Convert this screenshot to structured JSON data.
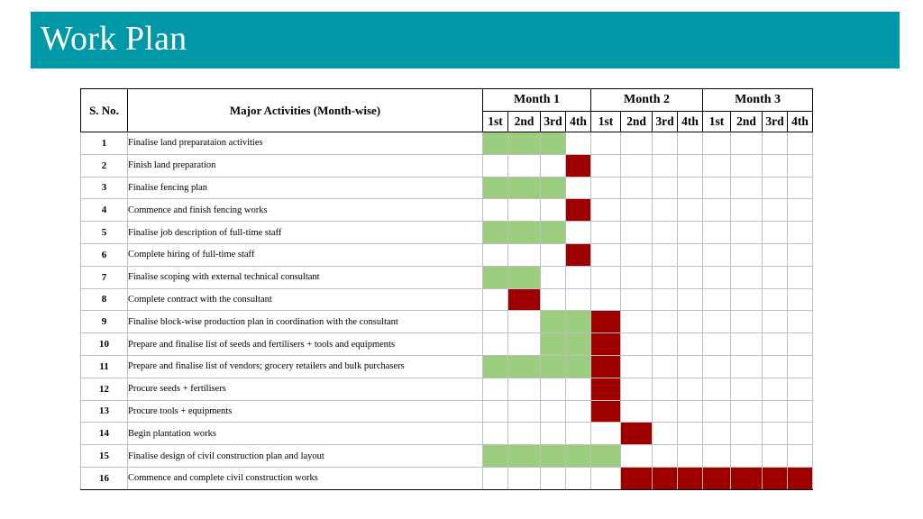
{
  "header": {
    "title": "Work Plan",
    "color": "#0097a7"
  },
  "table": {
    "sno_header": "S. No.",
    "activity_header": "Major Activities (Month-wise)",
    "months": [
      "Month 1",
      "Month 2",
      "Month 3"
    ],
    "weeks": [
      "1st",
      "2nd",
      "3rd",
      "4th"
    ],
    "colors": {
      "planning": "#9bcd7e",
      "execution": "#9e0000"
    },
    "rows": [
      {
        "no": "1",
        "activity": "Finalise land preparataion activities",
        "cells": "GGG........."
      },
      {
        "no": "2",
        "activity": "Finish land preparation",
        "cells": "...R........"
      },
      {
        "no": "3",
        "activity": "Finalise fencing plan",
        "cells": "GGG........."
      },
      {
        "no": "4",
        "activity": "Commence and finish fencing works",
        "cells": "...R........"
      },
      {
        "no": "5",
        "activity": "Finalise job description of full-time staff",
        "cells": "GGG........."
      },
      {
        "no": "6",
        "activity": "Complete hiring of full-time staff",
        "cells": "...R........"
      },
      {
        "no": "7",
        "activity": "Finalise scoping with external technical consultant",
        "cells": "GG.........."
      },
      {
        "no": "8",
        "activity": "Complete contract with the consultant",
        "cells": ".R.........."
      },
      {
        "no": "9",
        "activity": "Finalise block-wise production plan in coordination with the consultant",
        "cells": "..GGR......."
      },
      {
        "no": "10",
        "activity": "Prepare and finalise list of seeds and fertilisers + tools and equipments",
        "cells": "..GGR......."
      },
      {
        "no": "11",
        "activity": "Prepare and finalise list of vendors; grocery retailers and bulk purchasers",
        "cells": "GGGGR......."
      },
      {
        "no": "12",
        "activity": "Procure seeds + fertilisers",
        "cells": "....R......."
      },
      {
        "no": "13",
        "activity": "Procure tools + equipments",
        "cells": "....R......."
      },
      {
        "no": "14",
        "activity": "Begin plantation works",
        "cells": ".....R......"
      },
      {
        "no": "15",
        "activity": "Finalise design of civil construction plan and layout",
        "cells": "GGGGG......."
      },
      {
        "no": "16",
        "activity": "Commence and complete civil construction works",
        "cells": ".....RRRRRRR"
      }
    ]
  }
}
